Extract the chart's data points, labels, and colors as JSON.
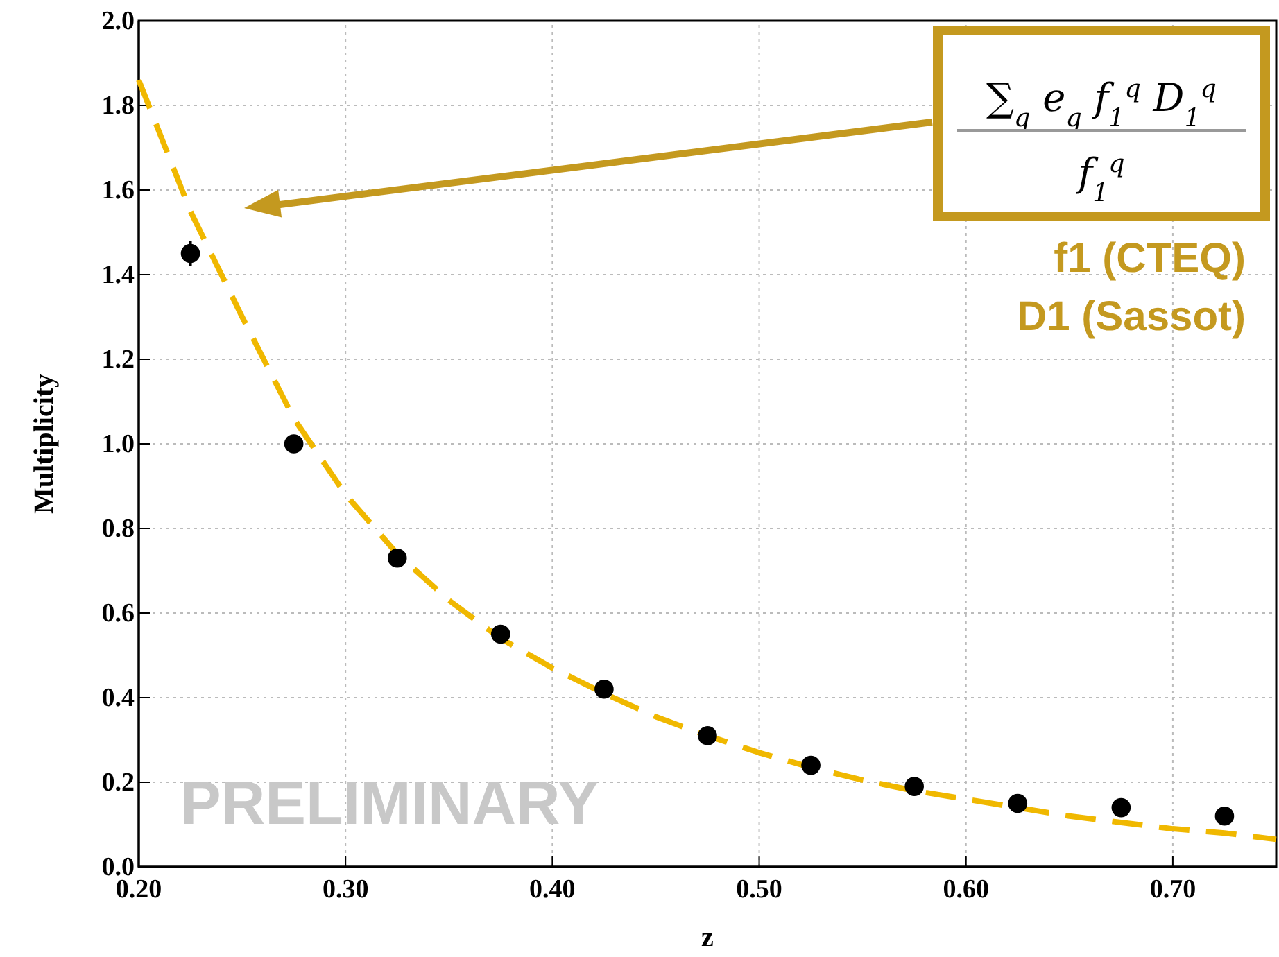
{
  "chart_data": {
    "type": "scatter",
    "xlabel": "z",
    "ylabel": "Multiplicity",
    "xlim": [
      0.2,
      0.75
    ],
    "ylim": [
      0,
      2
    ],
    "xticks": [
      {
        "value": 0.2,
        "label": "0.20"
      },
      {
        "value": 0.3,
        "label": "0.30"
      },
      {
        "value": 0.4,
        "label": "0.40"
      },
      {
        "value": 0.5,
        "label": "0.50"
      },
      {
        "value": 0.6,
        "label": "0.60"
      },
      {
        "value": 0.7,
        "label": "0.70"
      }
    ],
    "yticks": [
      {
        "value": 0,
        "label": "0.0"
      },
      {
        "value": 0.2,
        "label": "0.2"
      },
      {
        "value": 0.4,
        "label": "0.4"
      },
      {
        "value": 0.6,
        "label": "0.6"
      },
      {
        "value": 0.8,
        "label": "0.8"
      },
      {
        "value": 1,
        "label": "1.0"
      },
      {
        "value": 1.2,
        "label": "1.2"
      },
      {
        "value": 1.4,
        "label": "1.4"
      },
      {
        "value": 1.6,
        "label": "1.6"
      },
      {
        "value": 1.8,
        "label": "1.8"
      },
      {
        "value": 2,
        "label": "2.0"
      }
    ],
    "grid": true,
    "series": [
      {
        "type": "line",
        "line_style": "dashed",
        "color": "#f0b800",
        "x": [
          0.2,
          0.225,
          0.25,
          0.275,
          0.3,
          0.325,
          0.35,
          0.375,
          0.4,
          0.425,
          0.45,
          0.475,
          0.5,
          0.525,
          0.55,
          0.575,
          0.6,
          0.625,
          0.65,
          0.675,
          0.7,
          0.725,
          0.75
        ],
        "values": [
          1.86,
          1.55,
          1.3,
          1.06,
          0.88,
          0.74,
          0.63,
          0.54,
          0.47,
          0.41,
          0.355,
          0.31,
          0.27,
          0.235,
          0.205,
          0.18,
          0.16,
          0.14,
          0.12,
          0.105,
          0.09,
          0.08,
          0.065
        ]
      },
      {
        "marker": "circle",
        "color": "#000000",
        "x": [
          0.225,
          0.275,
          0.325,
          0.375,
          0.425,
          0.475,
          0.525,
          0.575,
          0.625,
          0.675,
          0.725
        ],
        "values": [
          1.45,
          1.0,
          0.73,
          0.55,
          0.42,
          0.31,
          0.24,
          0.19,
          0.15,
          0.14,
          0.12
        ],
        "errors": [
          0.03,
          null,
          null,
          null,
          null,
          null,
          null,
          null,
          null,
          null,
          null
        ]
      }
    ],
    "annotations": [
      "∑$_{q}$ e$_{q}$ f$_{1}$$^{q}$ D$_{1}$$^{q}$",
      "f$_{1}$$^{q}$",
      "f1 (CTEQ)",
      "D1 (Sassot)",
      "PRELIMINARY"
    ]
  }
}
